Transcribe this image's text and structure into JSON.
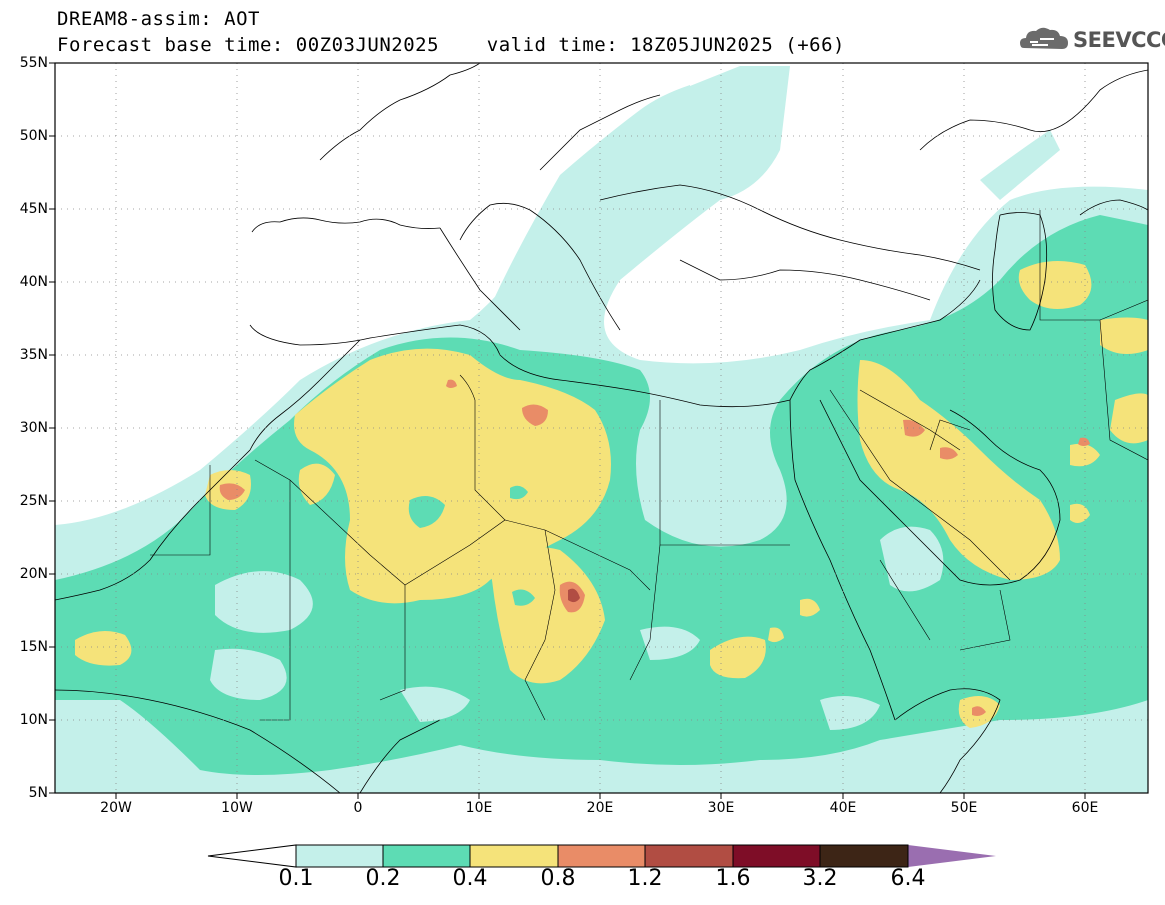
{
  "header": {
    "title_line1": "DREAM8-assim: AOT",
    "title_line2": "Forecast base time: 00Z03JUN2025    valid time: 18Z05JUN2025 (+66)"
  },
  "logo": {
    "text": "SEEVCCC",
    "icon": "cloud-icon"
  },
  "map": {
    "variable": "AOT",
    "projection": "lat-lon",
    "lon_range": [
      -25,
      65
    ],
    "lat_range": [
      5,
      55
    ],
    "grid": "dotted",
    "lat_labels": [
      "55N",
      "50N",
      "45N",
      "40N",
      "35N",
      "30N",
      "25N",
      "20N",
      "15N",
      "10N",
      "5N"
    ],
    "lon_labels": [
      "20W",
      "10W",
      "0",
      "10E",
      "20E",
      "30E",
      "40E",
      "50E",
      "60E"
    ]
  },
  "colorbar": {
    "thresholds": [
      "0.1",
      "0.2",
      "0.4",
      "0.8",
      "1.2",
      "1.6",
      "3.2",
      "6.4"
    ],
    "colors": [
      "#c4f0ea",
      "#5ddcb4",
      "#f5e37a",
      "#e98c67",
      "#b14d43",
      "#7e0d27",
      "#3d2516",
      "#9a6eb0"
    ]
  }
}
